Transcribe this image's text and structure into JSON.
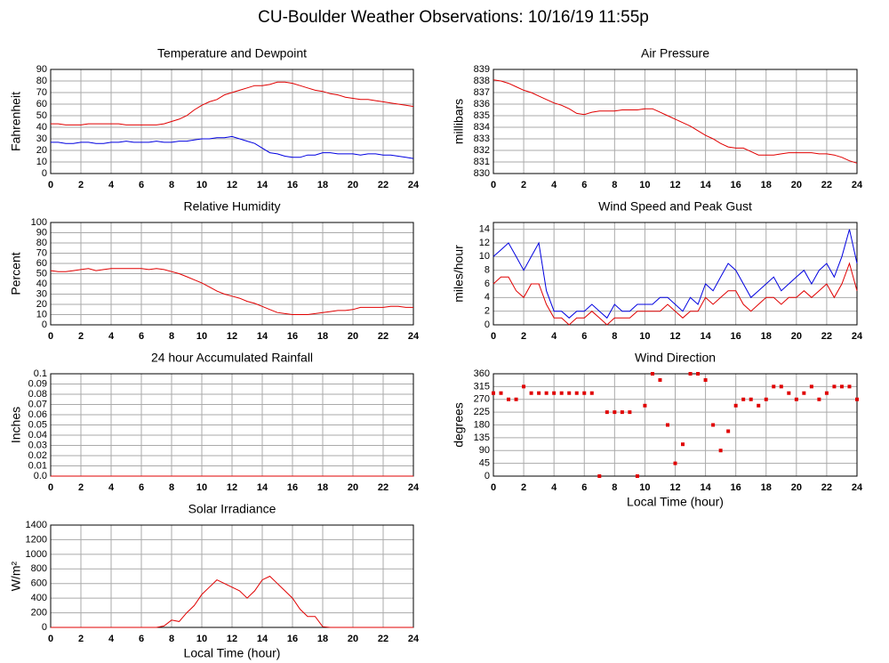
{
  "title": "CU-Boulder Weather Observations: 10/16/19 11:55p",
  "chart_data": [
    {
      "type": "line",
      "title": "Temperature and Dewpoint",
      "ylabel": "Fahrenheit",
      "grid": true,
      "x": [
        0,
        0.5,
        1,
        1.5,
        2,
        2.5,
        3,
        3.5,
        4,
        4.5,
        5,
        5.5,
        6,
        6.5,
        7,
        7.5,
        8,
        8.5,
        9,
        9.5,
        10,
        10.5,
        11,
        11.5,
        12,
        12.5,
        13,
        13.5,
        14,
        14.5,
        15,
        15.5,
        16,
        16.5,
        17,
        17.5,
        18,
        18.5,
        19,
        19.5,
        20,
        20.5,
        21,
        21.5,
        22,
        22.5,
        23,
        23.5,
        24
      ],
      "xlim": [
        0,
        24
      ],
      "xticks": [
        0,
        2,
        4,
        6,
        8,
        10,
        12,
        14,
        16,
        18,
        20,
        22,
        24
      ],
      "ylim": [
        0,
        90
      ],
      "yticks": [
        0,
        10,
        20,
        30,
        40,
        50,
        60,
        70,
        80,
        90
      ],
      "series": [
        {
          "color": "#e00000",
          "values": [
            43,
            43,
            42,
            42,
            42,
            43,
            43,
            43,
            43,
            43,
            42,
            42,
            42,
            42,
            42,
            43,
            45,
            47,
            50,
            55,
            59,
            62,
            64,
            68,
            70,
            72,
            74,
            76,
            76,
            77,
            79,
            79,
            78,
            76,
            74,
            72,
            71,
            69,
            68,
            66,
            65,
            64,
            64,
            63,
            62,
            61,
            60,
            59,
            58
          ]
        },
        {
          "color": "#0000e0",
          "values": [
            27,
            27,
            26,
            26,
            27,
            27,
            26,
            26,
            27,
            27,
            28,
            27,
            27,
            27,
            28,
            27,
            27,
            28,
            28,
            29,
            30,
            30,
            31,
            31,
            32,
            30,
            28,
            26,
            22,
            18,
            17,
            15,
            14,
            14,
            16,
            16,
            18,
            18,
            17,
            17,
            17,
            16,
            17,
            17,
            16,
            16,
            15,
            14,
            13
          ]
        }
      ]
    },
    {
      "type": "line",
      "title": "Air Pressure",
      "ylabel": "millibars",
      "grid": true,
      "x": [
        0,
        0.5,
        1,
        1.5,
        2,
        2.5,
        3,
        3.5,
        4,
        4.5,
        5,
        5.5,
        6,
        6.5,
        7,
        7.5,
        8,
        8.5,
        9,
        9.5,
        10,
        10.5,
        11,
        11.5,
        12,
        12.5,
        13,
        13.5,
        14,
        14.5,
        15,
        15.5,
        16,
        16.5,
        17,
        17.5,
        18,
        18.5,
        19,
        19.5,
        20,
        20.5,
        21,
        21.5,
        22,
        22.5,
        23,
        23.5,
        24
      ],
      "xlim": [
        0,
        24
      ],
      "xticks": [
        0,
        2,
        4,
        6,
        8,
        10,
        12,
        14,
        16,
        18,
        20,
        22,
        24
      ],
      "ylim": [
        830,
        839
      ],
      "yticks": [
        830,
        831,
        832,
        833,
        834,
        835,
        836,
        837,
        838,
        839
      ],
      "series": [
        {
          "color": "#e00000",
          "values": [
            838.1,
            838,
            837.8,
            837.5,
            837.2,
            837,
            836.7,
            836.4,
            836.1,
            835.9,
            835.6,
            835.2,
            835.1,
            835.3,
            835.4,
            835.4,
            835.4,
            835.5,
            835.5,
            835.5,
            835.6,
            835.6,
            835.3,
            835,
            834.7,
            834.4,
            834.1,
            833.7,
            833.3,
            833,
            832.6,
            832.3,
            832.2,
            832.2,
            831.9,
            831.6,
            831.6,
            831.6,
            831.7,
            831.8,
            831.8,
            831.8,
            831.8,
            831.7,
            831.7,
            831.6,
            831.4,
            831.1,
            830.9
          ]
        }
      ]
    },
    {
      "type": "line",
      "title": "Relative Humidity",
      "ylabel": "Percent",
      "grid": true,
      "x": [
        0,
        0.5,
        1,
        1.5,
        2,
        2.5,
        3,
        3.5,
        4,
        4.5,
        5,
        5.5,
        6,
        6.5,
        7,
        7.5,
        8,
        8.5,
        9,
        9.5,
        10,
        10.5,
        11,
        11.5,
        12,
        12.5,
        13,
        13.5,
        14,
        14.5,
        15,
        15.5,
        16,
        16.5,
        17,
        17.5,
        18,
        18.5,
        19,
        19.5,
        20,
        20.5,
        21,
        21.5,
        22,
        22.5,
        23,
        23.5,
        24
      ],
      "xlim": [
        0,
        24
      ],
      "xticks": [
        0,
        2,
        4,
        6,
        8,
        10,
        12,
        14,
        16,
        18,
        20,
        22,
        24
      ],
      "ylim": [
        0,
        100
      ],
      "yticks": [
        0,
        10,
        20,
        30,
        40,
        50,
        60,
        70,
        80,
        90,
        100
      ],
      "series": [
        {
          "color": "#e00000",
          "values": [
            53,
            52,
            52,
            53,
            54,
            55,
            53,
            54,
            55,
            55,
            55,
            55,
            55,
            54,
            55,
            54,
            52,
            50,
            47,
            44,
            41,
            37,
            33,
            30,
            28,
            26,
            23,
            21,
            18,
            15,
            12,
            11,
            10,
            10,
            10,
            11,
            12,
            13,
            14,
            14,
            15,
            17,
            17,
            17,
            17,
            18,
            18,
            17,
            17
          ]
        }
      ]
    },
    {
      "type": "line",
      "title": "Wind Speed and Peak Gust",
      "ylabel": "miles/hour",
      "grid": true,
      "x": [
        0,
        0.5,
        1,
        1.5,
        2,
        2.5,
        3,
        3.5,
        4,
        4.5,
        5,
        5.5,
        6,
        6.5,
        7,
        7.5,
        8,
        8.5,
        9,
        9.5,
        10,
        10.5,
        11,
        11.5,
        12,
        12.5,
        13,
        13.5,
        14,
        14.5,
        15,
        15.5,
        16,
        16.5,
        17,
        17.5,
        18,
        18.5,
        19,
        19.5,
        20,
        20.5,
        21,
        21.5,
        22,
        22.5,
        23,
        23.5,
        24
      ],
      "xlim": [
        0,
        24
      ],
      "xticks": [
        0,
        2,
        4,
        6,
        8,
        10,
        12,
        14,
        16,
        18,
        20,
        22,
        24
      ],
      "ylim": [
        0,
        15
      ],
      "yticks": [
        0,
        2,
        4,
        6,
        8,
        10,
        12,
        14
      ],
      "series": [
        {
          "color": "#0000e0",
          "values": [
            10,
            11,
            12,
            10,
            8,
            10,
            12,
            5,
            2,
            2,
            1,
            2,
            2,
            3,
            2,
            1,
            3,
            2,
            2,
            3,
            3,
            3,
            4,
            4,
            3,
            2,
            4,
            3,
            6,
            5,
            7,
            9,
            8,
            6,
            4,
            5,
            6,
            7,
            5,
            6,
            7,
            8,
            6,
            8,
            9,
            7,
            10,
            14,
            9
          ]
        },
        {
          "color": "#e00000",
          "values": [
            6,
            7,
            7,
            5,
            4,
            6,
            6,
            3,
            1,
            1,
            0,
            1,
            1,
            2,
            1,
            0,
            1,
            1,
            1,
            2,
            2,
            2,
            2,
            3,
            2,
            1,
            2,
            2,
            4,
            3,
            4,
            5,
            5,
            3,
            2,
            3,
            4,
            4,
            3,
            4,
            4,
            5,
            4,
            5,
            6,
            4,
            6,
            9,
            5
          ]
        }
      ]
    },
    {
      "type": "line",
      "title": "24 hour Accumulated Rainfall",
      "ylabel": "Inches",
      "grid": true,
      "x": [
        0,
        0.5,
        1,
        1.5,
        2,
        2.5,
        3,
        3.5,
        4,
        4.5,
        5,
        5.5,
        6,
        6.5,
        7,
        7.5,
        8,
        8.5,
        9,
        9.5,
        10,
        10.5,
        11,
        11.5,
        12,
        12.5,
        13,
        13.5,
        14,
        14.5,
        15,
        15.5,
        16,
        16.5,
        17,
        17.5,
        18,
        18.5,
        19,
        19.5,
        20,
        20.5,
        21,
        21.5,
        22,
        22.5,
        23,
        23.5,
        24
      ],
      "xlim": [
        0,
        24
      ],
      "xticks": [
        0,
        2,
        4,
        6,
        8,
        10,
        12,
        14,
        16,
        18,
        20,
        22,
        24
      ],
      "ylim": [
        0,
        0.1
      ],
      "yticks": [
        {
          "value": 0,
          "label": "0.0"
        },
        0.01,
        0.02,
        0.03,
        0.04,
        0.05,
        0.06,
        0.07,
        0.08,
        0.09,
        0.1
      ],
      "series": [
        {
          "color": "#e00000",
          "values": [
            0,
            0,
            0,
            0,
            0,
            0,
            0,
            0,
            0,
            0,
            0,
            0,
            0,
            0,
            0,
            0,
            0,
            0,
            0,
            0,
            0,
            0,
            0,
            0,
            0,
            0,
            0,
            0,
            0,
            0,
            0,
            0,
            0,
            0,
            0,
            0,
            0,
            0,
            0,
            0,
            0,
            0,
            0,
            0,
            0,
            0,
            0,
            0,
            0
          ]
        }
      ]
    },
    {
      "type": "scatter",
      "title": "Wind Direction",
      "ylabel": "degrees",
      "xlabel": "Local Time (hour)",
      "grid": true,
      "x": [
        0,
        0.5,
        1,
        1.5,
        2,
        2.5,
        3,
        3.5,
        4,
        4.5,
        5,
        5.5,
        6,
        6.5,
        7,
        7.5,
        8,
        8.5,
        9,
        9.5,
        10,
        10.5,
        11,
        11.5,
        12,
        12.5,
        13,
        13.5,
        14,
        14.5,
        15,
        15.5,
        16,
        16.5,
        17,
        17.5,
        18,
        18.5,
        19,
        19.5,
        20,
        20.5,
        21,
        21.5,
        22,
        22.5,
        23,
        23.5,
        24
      ],
      "xlim": [
        0,
        24
      ],
      "xticks": [
        0,
        2,
        4,
        6,
        8,
        10,
        12,
        14,
        16,
        18,
        20,
        22,
        24
      ],
      "ylim": [
        0,
        360
      ],
      "yticks": [
        0,
        45,
        90,
        135,
        180,
        225,
        270,
        315,
        360
      ],
      "series": [
        {
          "color": "#e00000",
          "values": [
            292,
            292,
            270,
            270,
            315,
            292,
            292,
            292,
            292,
            292,
            292,
            292,
            292,
            292,
            0,
            225,
            225,
            225,
            225,
            0,
            248,
            360,
            338,
            180,
            45,
            112,
            360,
            360,
            338,
            180,
            90,
            158,
            248,
            270,
            270,
            248,
            270,
            315,
            315,
            292,
            270,
            292,
            315,
            270,
            292,
            315,
            315,
            315,
            270
          ]
        }
      ]
    },
    {
      "type": "line",
      "title": "Solar Irradiance",
      "ylabel": "W/m²",
      "xlabel": "Local Time (hour)",
      "grid": true,
      "x": [
        0,
        0.5,
        1,
        1.5,
        2,
        2.5,
        3,
        3.5,
        4,
        4.5,
        5,
        5.5,
        6,
        6.5,
        7,
        7.5,
        8,
        8.5,
        9,
        9.5,
        10,
        10.5,
        11,
        11.5,
        12,
        12.5,
        13,
        13.5,
        14,
        14.5,
        15,
        15.5,
        16,
        16.5,
        17,
        17.5,
        18,
        18.5,
        19,
        19.5,
        20,
        20.5,
        21,
        21.5,
        22,
        22.5,
        23,
        23.5,
        24
      ],
      "xlim": [
        0,
        24
      ],
      "xticks": [
        0,
        2,
        4,
        6,
        8,
        10,
        12,
        14,
        16,
        18,
        20,
        22,
        24
      ],
      "ylim": [
        0,
        1400
      ],
      "yticks": [
        0,
        200,
        400,
        600,
        800,
        1000,
        1200,
        1400
      ],
      "series": [
        {
          "color": "#e00000",
          "values": [
            0,
            0,
            0,
            0,
            0,
            0,
            0,
            0,
            0,
            0,
            0,
            0,
            0,
            0,
            0,
            20,
            100,
            80,
            200,
            300,
            450,
            550,
            650,
            600,
            550,
            500,
            400,
            500,
            650,
            700,
            600,
            500,
            400,
            250,
            150,
            150,
            10,
            0,
            0,
            0,
            0,
            0,
            0,
            0,
            0,
            0,
            0,
            0,
            0
          ]
        }
      ]
    }
  ]
}
